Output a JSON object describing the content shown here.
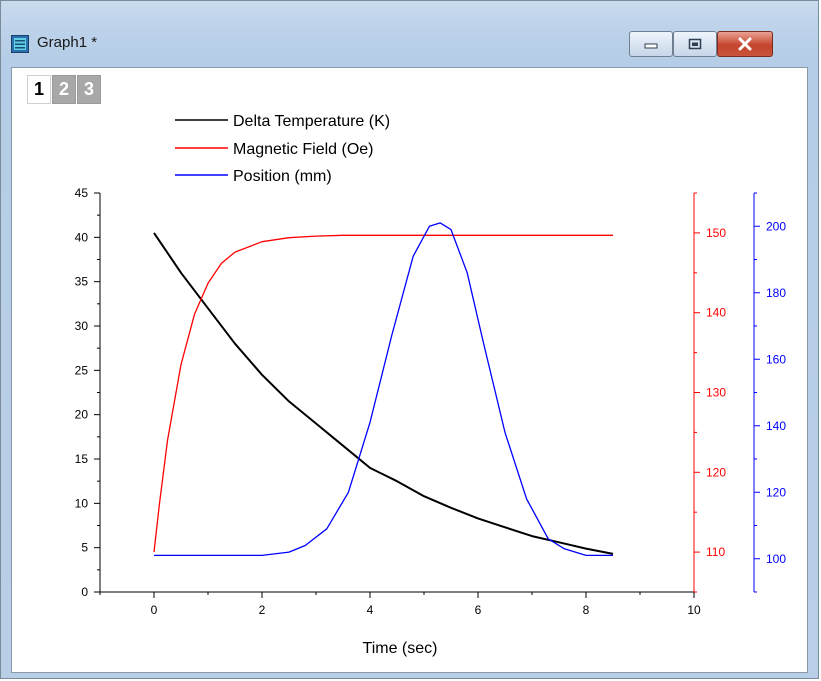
{
  "window": {
    "title": "Graph1 *",
    "layers": [
      "1",
      "2",
      "3"
    ],
    "active_layer": "1",
    "minimize_icon": "minimize-icon",
    "maximize_icon": "maximize-icon",
    "close_icon": "close-icon",
    "app_icon": "origin-graph-icon"
  },
  "chart_data": {
    "type": "line",
    "x_axis": {
      "label": "Time (sec)",
      "range": [
        -1,
        10
      ],
      "ticks": [
        0,
        2,
        4,
        6,
        8,
        10
      ]
    },
    "y_axes": [
      {
        "id": "left",
        "range": [
          0,
          45
        ],
        "ticks": [
          0,
          5,
          10,
          15,
          20,
          25,
          30,
          35,
          40,
          45
        ],
        "color": "#000000"
      },
      {
        "id": "right1",
        "range": [
          105,
          155
        ],
        "ticks": [
          110,
          120,
          130,
          140,
          150
        ],
        "color": "#ff0000"
      },
      {
        "id": "right2",
        "range": [
          90,
          210
        ],
        "ticks": [
          100,
          120,
          140,
          160,
          180,
          200
        ],
        "color": "#0000ff"
      }
    ],
    "legend": {
      "placement": "top-center",
      "entries": [
        "Delta Temperature (K)",
        "Magnetic Field (Oe)",
        "Position (mm)"
      ]
    },
    "series": [
      {
        "name": "Delta Temperature (K)",
        "axis": "left",
        "color": "#000000",
        "x": [
          0,
          0.5,
          1,
          1.5,
          2,
          2.5,
          3,
          3.5,
          4,
          4.5,
          5,
          5.5,
          6,
          6.5,
          7,
          7.5,
          8,
          8.5
        ],
        "y": [
          40.5,
          36,
          32,
          28,
          24.5,
          21.5,
          19,
          16.5,
          14,
          12.5,
          10.8,
          9.5,
          8.3,
          7.3,
          6.3,
          5.6,
          4.9,
          4.3
        ]
      },
      {
        "name": "Magnetic Field (Oe)",
        "axis": "right1",
        "color": "#ff0000",
        "x": [
          0,
          0.1,
          0.25,
          0.5,
          0.75,
          1,
          1.25,
          1.5,
          2,
          2.5,
          3,
          3.5,
          4,
          5,
          6,
          7,
          8,
          8.5
        ],
        "y": [
          110,
          116,
          124,
          133.5,
          139.8,
          143.7,
          146.2,
          147.6,
          148.9,
          149.4,
          149.6,
          149.7,
          149.7,
          149.7,
          149.7,
          149.7,
          149.7,
          149.7
        ]
      },
      {
        "name": "Position (mm)",
        "axis": "right2",
        "color": "#0000ff",
        "x": [
          0,
          0.5,
          1,
          1.5,
          2,
          2.5,
          2.8,
          3.2,
          3.6,
          4,
          4.4,
          4.8,
          5.1,
          5.3,
          5.5,
          5.8,
          6.1,
          6.5,
          6.9,
          7.3,
          7.6,
          8,
          8.5
        ],
        "y": [
          101,
          101,
          101,
          101,
          101,
          102,
          104,
          109,
          120,
          141,
          167,
          191,
          200,
          201,
          199,
          186,
          165,
          138,
          118,
          106,
          103,
          101,
          101
        ]
      }
    ]
  }
}
